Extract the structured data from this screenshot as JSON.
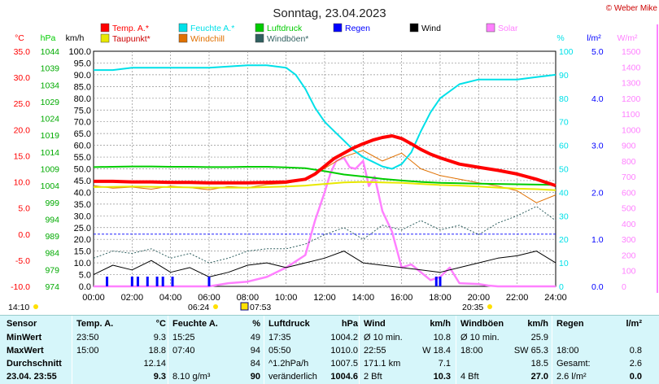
{
  "header": {
    "title": "Sonntag, 23.04.2023",
    "copyright": "© Weber Mike"
  },
  "colors": {
    "temp": "#ff0000",
    "feuchte": "#00e0e8",
    "luftdruck": "#00cc00",
    "regen": "#0000ff",
    "wind": "#000000",
    "solar": "#ff80ff",
    "taupunkt": "#e8e800",
    "windchill": "#e07000",
    "windboeen": "#306060",
    "grid": "#909090",
    "stats_bg": "#d6f6fa"
  },
  "legend": [
    {
      "label": "Temp. A.*",
      "color": "#ff0000"
    },
    {
      "label": "Feuchte A.*",
      "color": "#00e0e8"
    },
    {
      "label": "Luftdruck",
      "color": "#00cc00"
    },
    {
      "label": "Regen",
      "color": "#0000ff"
    },
    {
      "label": "Wind",
      "color": "#000000"
    },
    {
      "label": "Solar",
      "color": "#ff80ff"
    },
    {
      "label": "Taupunkt*",
      "color": "#e8e800"
    },
    {
      "label": "Windchill",
      "color": "#e07000"
    },
    {
      "label": "Windböen*",
      "color": "#306060"
    }
  ],
  "axis_units": {
    "temp": "°C",
    "pressure": "hPa",
    "wind": "km/h",
    "humidity": "%",
    "rain": "l/m²",
    "solar": "W/m²"
  },
  "chart_data": {
    "type": "line",
    "x_ticks": [
      "00:00",
      "02:00",
      "04:00",
      "06:00",
      "08:00",
      "10:00",
      "12:00",
      "14:00",
      "16:00",
      "18:00",
      "20:00",
      "22:00",
      "24:00"
    ],
    "axes": {
      "temp": {
        "range": [
          -10,
          35
        ],
        "ticks": [
          "35.0",
          "30.0",
          "25.0",
          "20.0",
          "15.0",
          "10.0",
          "5.0",
          "0.0",
          "-5.0",
          "-10.0"
        ]
      },
      "pressure": {
        "range": [
          974,
          1044
        ],
        "ticks": [
          "1044",
          "1039",
          "1034",
          "1029",
          "1024",
          "1019",
          "1014",
          "1009",
          "1004",
          "999",
          "994",
          "989",
          "984",
          "979",
          "974"
        ]
      },
      "wind": {
        "range": [
          0,
          100
        ],
        "ticks": [
          "100.0",
          "95.0",
          "90.0",
          "85.0",
          "80.0",
          "75.0",
          "70.0",
          "65.0",
          "60.0",
          "55.0",
          "50.0",
          "45.0",
          "40.0",
          "35.0",
          "30.0",
          "25.0",
          "20.0",
          "15.0",
          "10.0",
          "5.0",
          "0.0"
        ]
      },
      "humidity": {
        "range": [
          0,
          100
        ],
        "ticks": [
          "100",
          "90",
          "80",
          "70",
          "60",
          "50",
          "40",
          "30",
          "20",
          "10",
          "0"
        ]
      },
      "rain": {
        "range": [
          0,
          5
        ],
        "ticks": [
          "5.0",
          "4.0",
          "3.0",
          "2.0",
          "1.0",
          "0.0"
        ]
      },
      "solar": {
        "range": [
          0,
          1500
        ],
        "ticks": [
          "1500",
          "1400",
          "1300",
          "1200",
          "1100",
          "1000",
          "900",
          "800",
          "700",
          "600",
          "500",
          "400",
          "300",
          "200",
          "100",
          "0"
        ]
      }
    },
    "series": [
      {
        "name": "Temp. A.*",
        "axis": "temp",
        "x": [
          0,
          1,
          2,
          3,
          4,
          5,
          6,
          7,
          8,
          9,
          10,
          11,
          11.5,
          12,
          12.5,
          13,
          13.5,
          14,
          14.5,
          15,
          15.5,
          16,
          16.5,
          17,
          17.5,
          18,
          19,
          20,
          21,
          22,
          23,
          24
        ],
        "y": [
          10.1,
          10.1,
          10.0,
          10.0,
          9.9,
          9.9,
          9.8,
          9.8,
          9.8,
          9.9,
          10.0,
          10.5,
          11.5,
          13.0,
          14.5,
          15.5,
          16.5,
          17.3,
          18.0,
          18.5,
          18.8,
          18.3,
          17.3,
          16.2,
          15.3,
          14.6,
          13.4,
          12.8,
          12.2,
          11.5,
          10.5,
          9.3
        ]
      },
      {
        "name": "Feuchte A.*",
        "axis": "humidity",
        "x": [
          0,
          1,
          2,
          4,
          6,
          8,
          9,
          10,
          10.5,
          11,
          11.5,
          12,
          12.5,
          13,
          13.5,
          14,
          14.5,
          15,
          15.5,
          16,
          16.5,
          17,
          17.5,
          18,
          19,
          20,
          21,
          22,
          23,
          24
        ],
        "y": [
          92,
          92,
          93,
          93,
          93,
          94,
          94,
          93,
          90,
          84,
          76,
          70,
          66,
          62,
          58,
          55,
          53,
          51,
          50,
          52,
          57,
          66,
          74,
          80,
          86,
          88,
          88,
          88,
          89,
          90
        ]
      },
      {
        "name": "Luftdruck",
        "axis": "pressure",
        "x": [
          0,
          1,
          2,
          3,
          4,
          5,
          6,
          7,
          8,
          9,
          10,
          11,
          12,
          13,
          14,
          15,
          16,
          17,
          18,
          19,
          20,
          21,
          22,
          23,
          24
        ],
        "y": [
          1009.5,
          1009.6,
          1009.7,
          1009.7,
          1009.6,
          1009.6,
          1009.5,
          1009.5,
          1009.6,
          1009.6,
          1009.4,
          1009.2,
          1008.3,
          1007.3,
          1006.7,
          1006.0,
          1005.5,
          1005.1,
          1004.8,
          1004.7,
          1004.6,
          1004.5,
          1004.4,
          1004.3,
          1004.2
        ]
      },
      {
        "name": "Taupunkt*",
        "axis": "temp",
        "x": [
          0,
          2,
          4,
          6,
          8,
          10,
          11,
          12,
          13,
          14,
          15,
          16,
          17,
          18,
          19,
          20,
          21,
          22,
          23,
          24
        ],
        "y": [
          9.0,
          9.1,
          9.0,
          8.9,
          8.9,
          9.1,
          9.3,
          9.6,
          9.9,
          10.0,
          9.9,
          9.8,
          9.6,
          9.4,
          9.3,
          9.1,
          8.9,
          8.7,
          8.6,
          8.4
        ]
      },
      {
        "name": "Windchill",
        "axis": "temp",
        "x": [
          0,
          1,
          2,
          3,
          4,
          5,
          6,
          7,
          8,
          9,
          10,
          11,
          12,
          13,
          14,
          15,
          16,
          17,
          18,
          19,
          20,
          21,
          22,
          23,
          24
        ],
        "y": [
          9.3,
          8.8,
          9.0,
          8.6,
          9.2,
          8.9,
          8.5,
          9.1,
          8.9,
          9.5,
          9.7,
          10.5,
          12.6,
          14.8,
          16.0,
          14.0,
          15.5,
          12.5,
          11.2,
          10.5,
          9.8,
          9.2,
          8.3,
          6.0,
          7.5
        ]
      },
      {
        "name": "Wind",
        "axis": "wind",
        "x": [
          0,
          1,
          2,
          3,
          4,
          5,
          6,
          7,
          8,
          9,
          10,
          11,
          12,
          13,
          14,
          15,
          16,
          17,
          18,
          19,
          20,
          21,
          22,
          23,
          24
        ],
        "y": [
          5,
          9,
          7,
          11,
          6,
          8,
          4,
          6,
          9,
          10,
          8,
          10,
          12,
          15,
          10,
          9,
          8,
          7,
          6,
          8,
          10,
          12,
          13,
          15,
          10
        ]
      },
      {
        "name": "Windböen*",
        "axis": "wind",
        "x": [
          0,
          1,
          2,
          3,
          4,
          5,
          6,
          7,
          8,
          9,
          10,
          11,
          12,
          13,
          14,
          15,
          16,
          17,
          18,
          19,
          20,
          21,
          22,
          23,
          24
        ],
        "y": [
          12,
          15,
          14,
          16,
          12,
          14,
          10,
          12,
          15,
          16,
          16,
          18,
          22,
          25,
          20,
          26,
          24,
          28,
          24,
          26,
          22,
          27,
          30,
          34,
          28
        ]
      },
      {
        "name": "Solar",
        "axis": "solar",
        "x": [
          0,
          6,
          7,
          8,
          9,
          10,
          11,
          11.5,
          12,
          12.3,
          12.6,
          13,
          13.3,
          13.6,
          14,
          14.3,
          14.6,
          15,
          15.5,
          16,
          16.5,
          17,
          17.5,
          18,
          18.5,
          19,
          20,
          20.5,
          21,
          24
        ],
        "y": [
          0,
          0,
          20,
          30,
          60,
          120,
          200,
          420,
          600,
          720,
          800,
          820,
          760,
          750,
          800,
          640,
          700,
          480,
          350,
          120,
          140,
          90,
          40,
          60,
          120,
          20,
          15,
          5,
          0,
          0
        ]
      }
    ],
    "rain_marks_x": [
      0.7,
      2.0,
      2.3,
      2.8,
      3.3,
      3.6,
      4.1,
      6.0,
      17.8,
      18.0
    ],
    "time_markers": {
      "start_label": "14:10",
      "sunrise": "06:24",
      "sunrise2": "07:53",
      "sunset": "20:35"
    }
  },
  "stats": {
    "row_labels": [
      "Sensor",
      "MinWert",
      "MaxWert",
      "Durchschnitt",
      "23.04.  23:55"
    ],
    "temp": {
      "header": [
        "Temp. A.",
        "°C"
      ],
      "rows": [
        [
          "23:50",
          "9.3"
        ],
        [
          "15:00",
          "18.8"
        ],
        [
          "",
          "12.14"
        ],
        [
          "",
          "9.3"
        ]
      ]
    },
    "feuchte": {
      "header": [
        "Feuchte A.",
        "%"
      ],
      "rows": [
        [
          "15:25",
          "49"
        ],
        [
          "07:40",
          "94"
        ],
        [
          "",
          "84"
        ],
        [
          "8.10 g/m³",
          "90"
        ]
      ]
    },
    "luftdruck": {
      "header": [
        "Luftdruck",
        "hPa"
      ],
      "rows": [
        [
          "17:35",
          "1004.2"
        ],
        [
          "05:50",
          "1010.0"
        ],
        [
          "^1.2hPa/h",
          "1007.5"
        ],
        [
          "veränderlich",
          "1004.6"
        ]
      ]
    },
    "wind": {
      "header": [
        "Wind",
        "km/h"
      ],
      "rows": [
        [
          "Ø 10 min.",
          "10.8"
        ],
        [
          "22:55",
          "W 18.4"
        ],
        [
          "171.1 km",
          "7.1"
        ],
        [
          "2 Bft",
          "10.3"
        ]
      ]
    },
    "boeen": {
      "header": [
        "Windböen",
        "km/h"
      ],
      "rows": [
        [
          "Ø 10 min.",
          "25.9"
        ],
        [
          "18:00",
          "SW 65.3"
        ],
        [
          "",
          "18.5"
        ],
        [
          "4 Bft",
          "27.0"
        ]
      ]
    },
    "regen": {
      "header": [
        "Regen",
        "l/m²"
      ],
      "rows": [
        [
          "",
          ""
        ],
        [
          "18:00",
          "0.8"
        ],
        [
          "Gesamt:",
          "2.6"
        ],
        [
          "2.6 l/m²",
          "0.0"
        ]
      ]
    }
  }
}
